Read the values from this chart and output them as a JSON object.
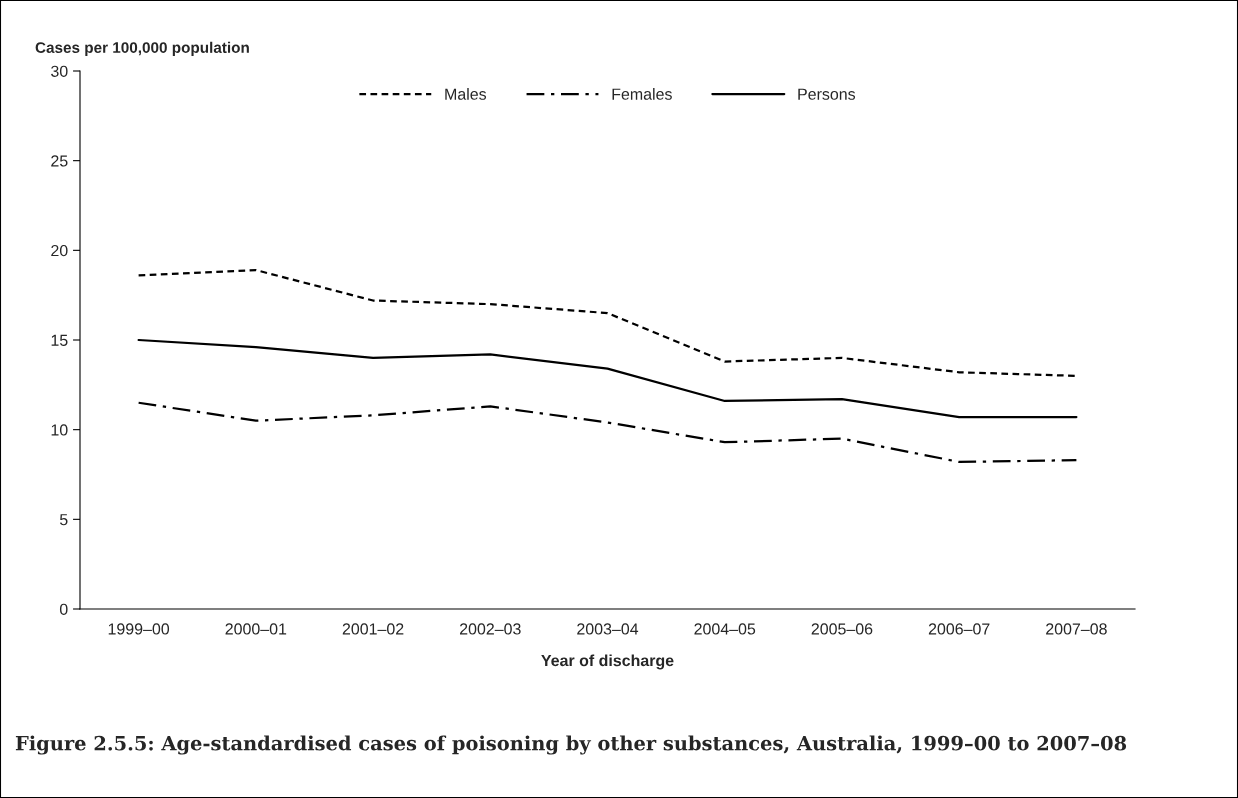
{
  "chart_data": {
    "type": "line",
    "title": "Figure 2.5.5: Age-standardised cases of poisoning by other substances, Australia, 1999–00 to 2007–08",
    "xlabel": "Year of discharge",
    "ylabel": "Cases per 100,000 population",
    "categories": [
      "1999–00",
      "2000–01",
      "2001–02",
      "2002–03",
      "2003–04",
      "2004–05",
      "2005–06",
      "2006–07",
      "2007–08"
    ],
    "series": [
      {
        "name": "Males",
        "color": "#000000",
        "line_style": "dashed",
        "values": [
          18.6,
          18.9,
          17.2,
          17.0,
          16.5,
          13.8,
          14.0,
          13.2,
          13.0
        ]
      },
      {
        "name": "Females",
        "color": "#000000",
        "line_style": "dashdot",
        "values": [
          11.5,
          10.5,
          10.8,
          11.3,
          10.4,
          9.3,
          9.5,
          8.2,
          8.3
        ]
      },
      {
        "name": "Persons",
        "color": "#000000",
        "line_style": "solid",
        "values": [
          15.0,
          14.6,
          14.0,
          14.2,
          13.4,
          11.6,
          11.7,
          10.7,
          10.7
        ]
      }
    ],
    "ylim": [
      0,
      30
    ],
    "yticks": [
      0,
      5,
      10,
      15,
      20,
      25,
      30
    ],
    "grid": false,
    "legend": "top",
    "marker": "none"
  }
}
